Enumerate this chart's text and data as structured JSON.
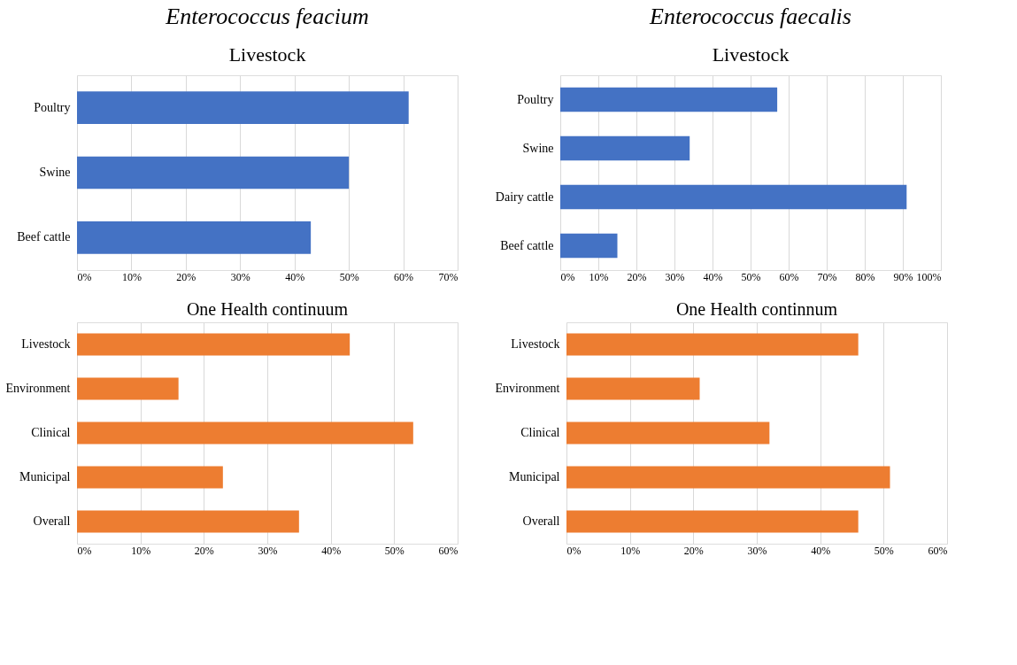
{
  "chart_data": [
    {
      "type": "bar",
      "orientation": "horizontal",
      "title": "Enterococcus feacium",
      "subtitle": "Livestock",
      "categories": [
        "Poultry",
        "Swine",
        "Beef cattle"
      ],
      "values": [
        61,
        50,
        43
      ],
      "color": "#4472c4",
      "xlim": [
        0,
        70
      ],
      "xticks": [
        {
          "value": 0,
          "label": "0%"
        },
        {
          "value": 10,
          "label": "10%"
        },
        {
          "value": 20,
          "label": "20%"
        },
        {
          "value": 30,
          "label": "30%"
        },
        {
          "value": 40,
          "label": "40%"
        },
        {
          "value": 50,
          "label": "50%"
        },
        {
          "value": 60,
          "label": "60%"
        },
        {
          "value": 70,
          "label": "70%"
        }
      ],
      "grid": "x"
    },
    {
      "type": "bar",
      "orientation": "horizontal",
      "title": "Enterococcus faecalis",
      "subtitle": "Livestock",
      "categories": [
        "Poultry",
        "Swine",
        "Dairy cattle",
        "Beef cattle"
      ],
      "values": [
        57,
        34,
        91,
        15
      ],
      "color": "#4472c4",
      "xlim": [
        0,
        100
      ],
      "xticks": [
        {
          "value": 0,
          "label": "0%"
        },
        {
          "value": 10,
          "label": "10%"
        },
        {
          "value": 20,
          "label": "20%"
        },
        {
          "value": 30,
          "label": "30%"
        },
        {
          "value": 40,
          "label": "40%"
        },
        {
          "value": 50,
          "label": "50%"
        },
        {
          "value": 60,
          "label": "60%"
        },
        {
          "value": 70,
          "label": "70%"
        },
        {
          "value": 80,
          "label": "80%"
        },
        {
          "value": 90,
          "label": "90%"
        },
        {
          "value": 100,
          "label": "100%"
        }
      ],
      "grid": "x"
    },
    {
      "type": "bar",
      "orientation": "horizontal",
      "title": "One Health continuum",
      "categories": [
        "Livestock",
        "Environment",
        "Clinical",
        "Municipal",
        "Overall"
      ],
      "values": [
        43,
        16,
        53,
        23,
        35
      ],
      "color": "#ed7d31",
      "xlim": [
        0,
        60
      ],
      "xticks": [
        {
          "value": 0,
          "label": "0%"
        },
        {
          "value": 10,
          "label": "10%"
        },
        {
          "value": 20,
          "label": "20%"
        },
        {
          "value": 30,
          "label": "30%"
        },
        {
          "value": 40,
          "label": "40%"
        },
        {
          "value": 50,
          "label": "50%"
        },
        {
          "value": 60,
          "label": "60%"
        }
      ],
      "grid": "x"
    },
    {
      "type": "bar",
      "orientation": "horizontal",
      "title": "One Health continnum",
      "categories": [
        "Livestock",
        "Environment",
        "Clinical",
        "Municipal",
        "Overall"
      ],
      "values": [
        46,
        21,
        32,
        51,
        46
      ],
      "color": "#ed7d31",
      "xlim": [
        0,
        60
      ],
      "xticks": [
        {
          "value": 0,
          "label": "0%"
        },
        {
          "value": 10,
          "label": "10%"
        },
        {
          "value": 20,
          "label": "20%"
        },
        {
          "value": 30,
          "label": "30%"
        },
        {
          "value": 40,
          "label": "40%"
        },
        {
          "value": 50,
          "label": "50%"
        },
        {
          "value": 60,
          "label": "60%"
        }
      ],
      "grid": "x"
    }
  ]
}
